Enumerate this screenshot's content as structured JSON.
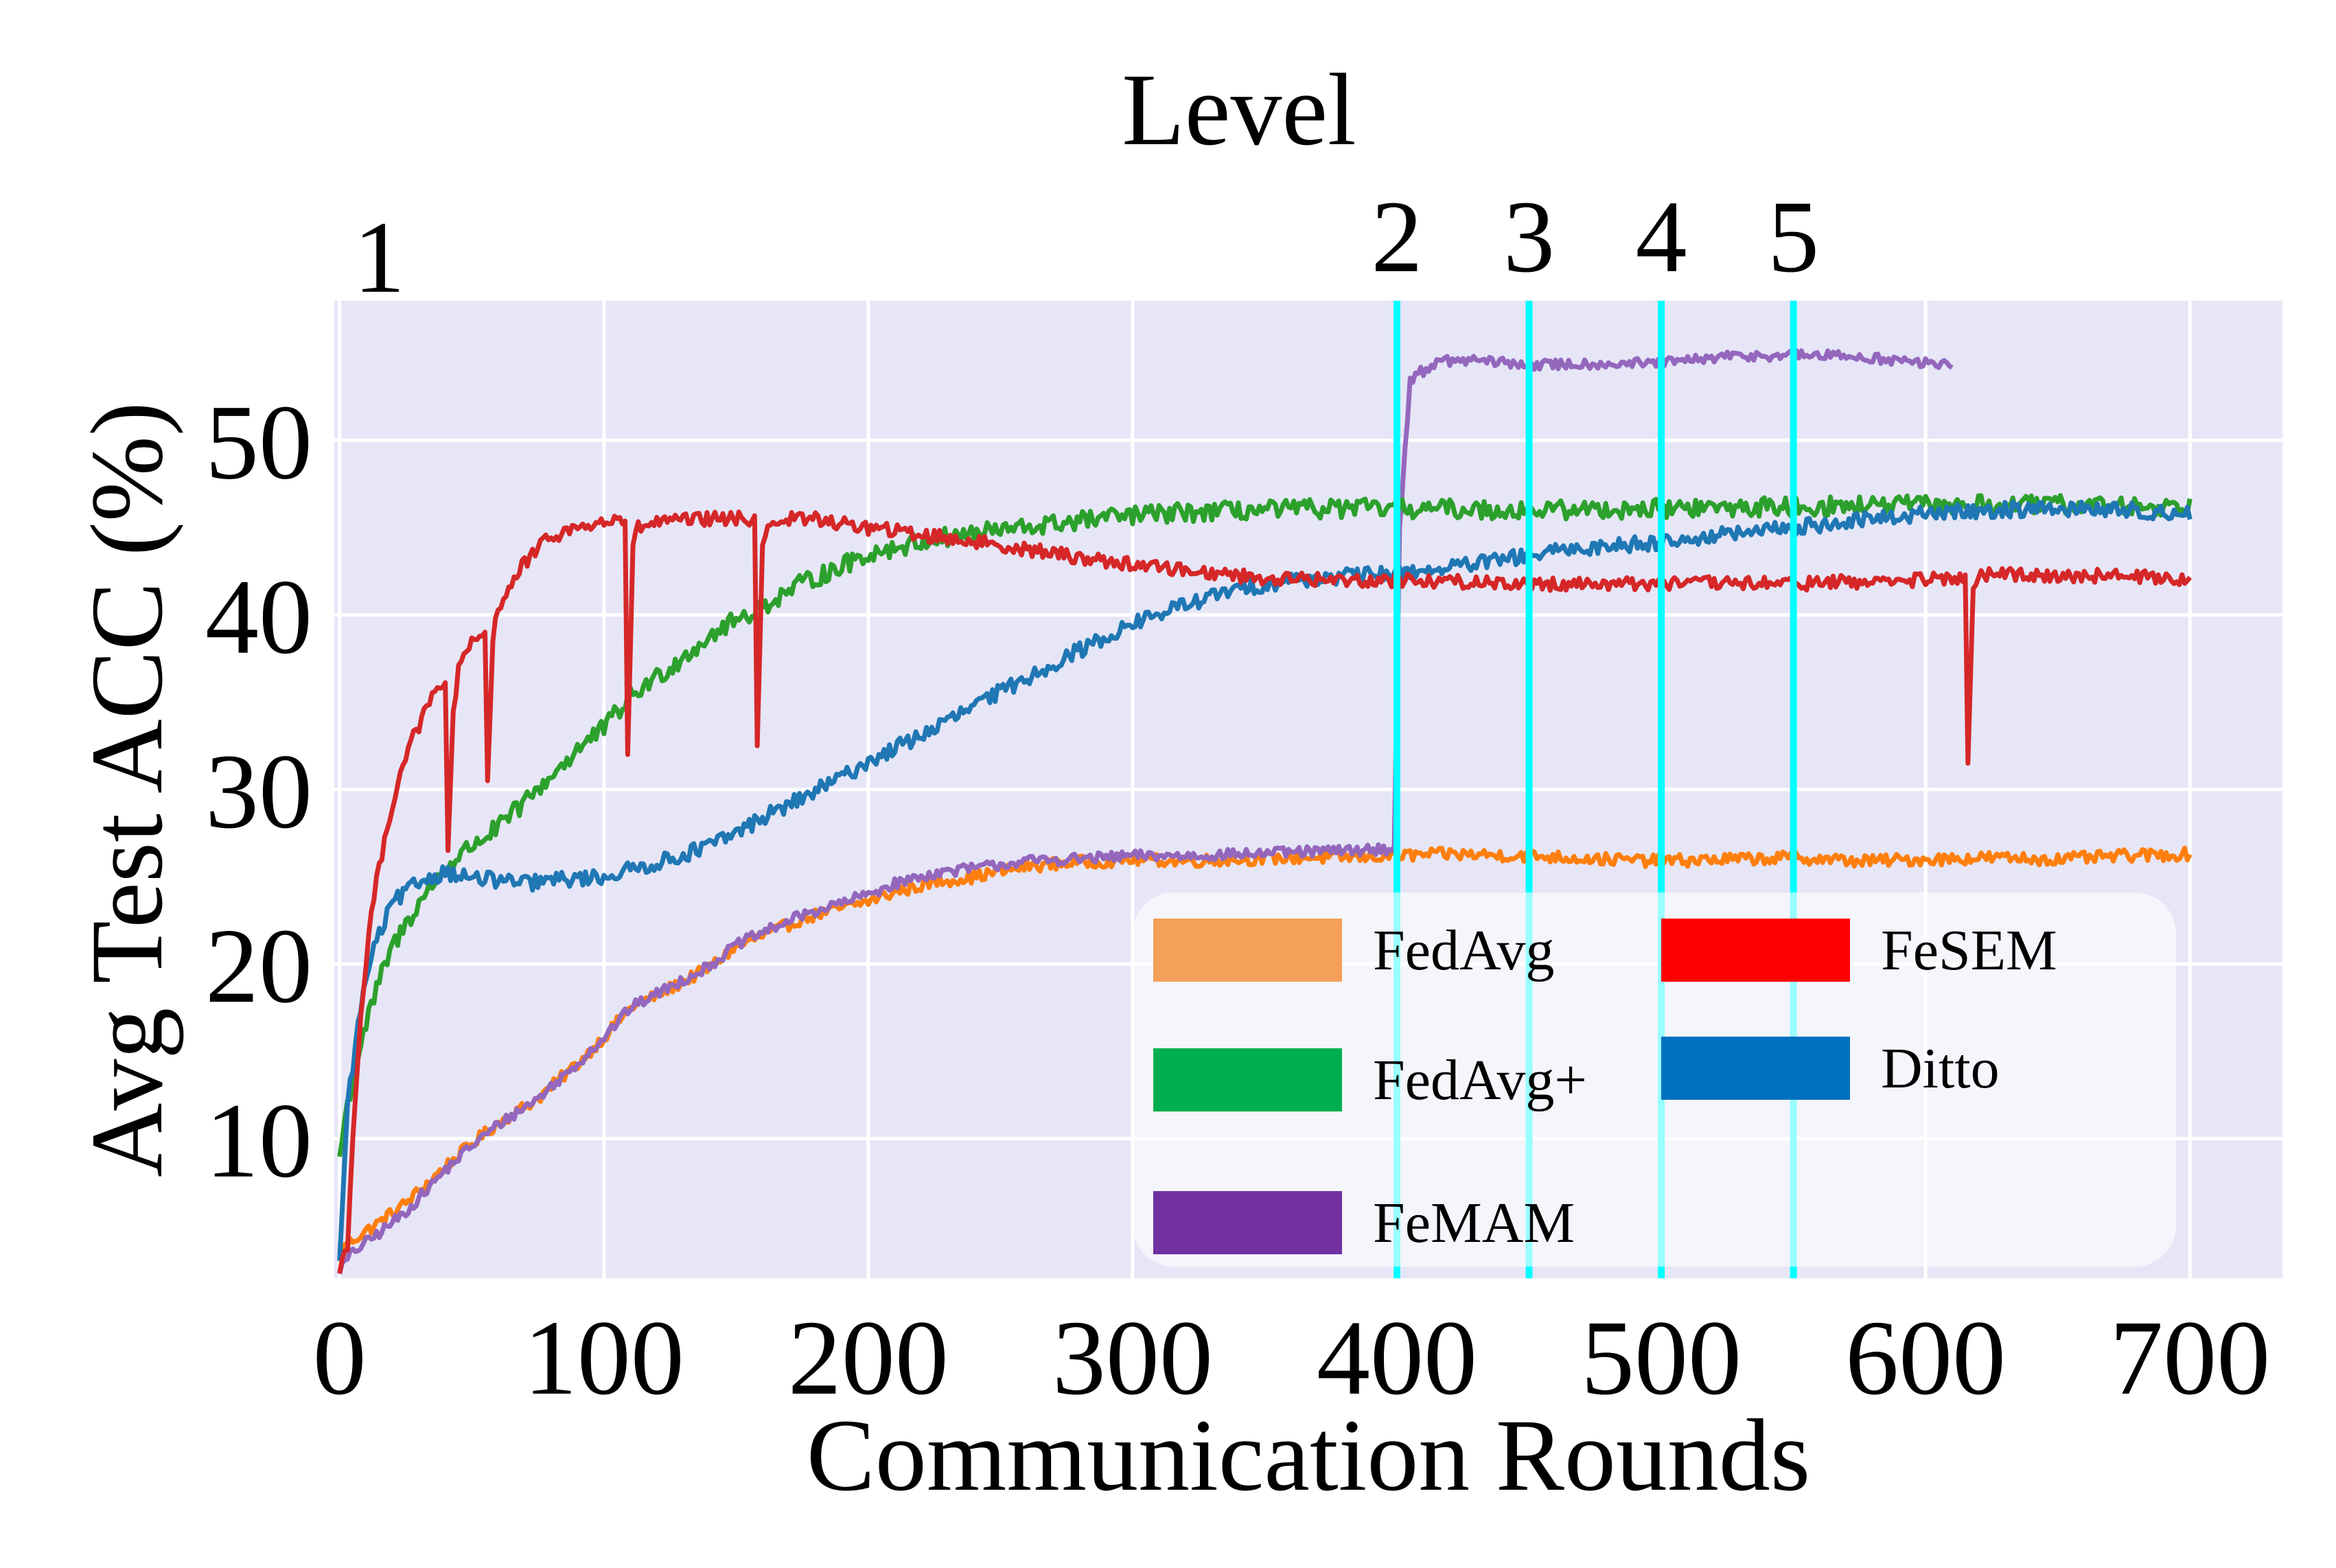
{
  "chart_data": {
    "type": "line",
    "title": "",
    "xlabel": "Communication Rounds",
    "ylabel": "Avg Test ACC (%)",
    "top_axis": {
      "label": "Level",
      "ticks": [
        {
          "x": 15,
          "label": "1"
        },
        {
          "x": 400,
          "label": "2"
        },
        {
          "x": 450,
          "label": "3"
        },
        {
          "x": 500,
          "label": "4"
        },
        {
          "x": 550,
          "label": "5"
        }
      ]
    },
    "xlim": [
      -2,
      735
    ],
    "ylim": [
      2,
      58
    ],
    "x_ticks": [
      0,
      100,
      200,
      300,
      400,
      500,
      600,
      700
    ],
    "x_tick_labels": [
      "0",
      "100",
      "200",
      "300",
      "400",
      "500",
      "600",
      "700"
    ],
    "y_ticks": [
      10,
      20,
      30,
      40,
      50
    ],
    "y_tick_labels": [
      "10",
      "20",
      "30",
      "40",
      "50"
    ],
    "grid": true,
    "background": "#e6e6f7",
    "level_line_color": "#00ffff",
    "level_lines": [
      400,
      450,
      500,
      550
    ],
    "legend": {
      "position": "lower-right",
      "columns": 2,
      "entries": [
        {
          "name": "FedAvg",
          "color": "#f4a05a"
        },
        {
          "name": "FeSEM",
          "color": "#ff0000"
        },
        {
          "name": "FedAvg+",
          "color": "#00ae4f"
        },
        {
          "name": "Ditto",
          "color": "#0070c0"
        },
        {
          "name": "FeMAM",
          "color": "#7030a0"
        }
      ]
    },
    "series": [
      {
        "name": "FedAvg",
        "color": "#ff7f0e",
        "x": [
          0,
          5,
          15,
          25,
          40,
          50,
          60,
          75,
          90,
          100,
          110,
          125,
          140,
          150,
          160,
          175,
          190,
          200,
          210,
          225,
          240,
          250,
          260,
          275,
          290,
          300,
          320,
          340,
          360,
          380,
          399,
          420,
          450,
          480,
          500,
          525,
          550,
          575,
          600,
          625,
          650,
          675,
          700
        ],
        "y": [
          3.5,
          4.2,
          5.2,
          6.3,
          8.4,
          9.7,
          10.9,
          12.3,
          14.3,
          15.8,
          17.5,
          18.6,
          19.8,
          21.0,
          21.6,
          22.6,
          23.2,
          23.6,
          24.1,
          24.7,
          25.0,
          25.3,
          25.6,
          25.8,
          25.9,
          26.0,
          25.9,
          26.0,
          26.1,
          26.1,
          26.2,
          26.3,
          26.2,
          26.0,
          25.9,
          26.0,
          26.1,
          25.9,
          26.0,
          26.1,
          26.0,
          26.2,
          26.3
        ],
        "noise": 0.35
      },
      {
        "name": "FeMAM",
        "color": "#9467bd",
        "x": [
          0,
          5,
          15,
          25,
          40,
          50,
          60,
          75,
          90,
          100,
          110,
          125,
          140,
          150,
          160,
          175,
          190,
          200,
          210,
          225,
          240,
          250,
          260,
          275,
          290,
          300,
          320,
          340,
          360,
          380,
          399,
          401,
          405,
          415,
          430,
          450,
          475,
          500,
          525,
          550,
          575,
          600,
          610
        ],
        "y": [
          2.5,
          3.5,
          4.6,
          5.8,
          8.2,
          9.6,
          10.8,
          12.3,
          14.3,
          15.8,
          17.5,
          18.7,
          19.9,
          21.1,
          21.8,
          22.8,
          23.5,
          24.0,
          24.6,
          25.2,
          25.5,
          25.7,
          25.9,
          26.0,
          26.1,
          26.2,
          26.2,
          26.3,
          26.4,
          26.5,
          26.6,
          45.0,
          53.5,
          54.5,
          54.6,
          54.3,
          54.4,
          54.4,
          54.8,
          54.9,
          54.8,
          54.4,
          54.4
        ],
        "noise": 0.3
      },
      {
        "name": "FedAvg+",
        "color": "#2ca02c",
        "x": [
          0,
          3,
          8,
          15,
          20,
          30,
          40,
          50,
          60,
          75,
          90,
          100,
          110,
          125,
          140,
          150,
          160,
          175,
          190,
          200,
          220,
          240,
          260,
          280,
          300,
          325,
          350,
          375,
          400,
          450,
          500,
          550,
          600,
          650,
          700
        ],
        "y": [
          9.0,
          12.0,
          15.5,
          19.0,
          21.0,
          23.5,
          25.5,
          26.8,
          27.8,
          30.0,
          32.3,
          33.5,
          35.3,
          37.0,
          38.8,
          39.7,
          40.5,
          41.8,
          42.8,
          43.5,
          44.2,
          44.7,
          45.0,
          45.4,
          45.7,
          45.9,
          46.0,
          46.1,
          46.1,
          46.0,
          46.1,
          46.2,
          46.3,
          46.3,
          46.2
        ],
        "noise": 0.55
      },
      {
        "name": "Ditto",
        "color": "#1f77b4",
        "x": [
          0,
          3,
          8,
          12,
          20,
          30,
          40,
          50,
          60,
          70,
          80,
          90,
          100,
          110,
          125,
          140,
          150,
          160,
          175,
          190,
          200,
          225,
          250,
          275,
          300,
          320,
          340,
          360,
          380,
          400,
          425,
          450,
          475,
          500,
          525,
          550,
          575,
          600,
          625,
          650,
          675,
          700
        ],
        "y": [
          3.0,
          12.0,
          17.5,
          20.5,
          23.5,
          24.7,
          25.3,
          24.9,
          24.8,
          24.6,
          24.8,
          24.9,
          25.0,
          25.4,
          26.0,
          26.8,
          27.5,
          28.4,
          29.5,
          30.7,
          31.6,
          33.5,
          35.6,
          37.6,
          39.5,
          40.6,
          41.5,
          42.0,
          42.2,
          42.4,
          42.8,
          43.4,
          43.9,
          44.2,
          44.6,
          45.0,
          45.4,
          45.8,
          46.0,
          46.1,
          46.0,
          45.8
        ],
        "noise": 0.45
      },
      {
        "name": "FeSEM",
        "color": "#d62728",
        "x": [
          0,
          3,
          5,
          8,
          12,
          18,
          25,
          35,
          40,
          41,
          43,
          45,
          50,
          55,
          56,
          58,
          60,
          70,
          80,
          90,
          100,
          108,
          109,
          111,
          113,
          120,
          130,
          140,
          150,
          157,
          158,
          160,
          162,
          170,
          180,
          190,
          200,
          225,
          250,
          275,
          300,
          325,
          350,
          375,
          400,
          425,
          450,
          475,
          500,
          525,
          550,
          575,
          600,
          615,
          616,
          618,
          620,
          625,
          650,
          675,
          700
        ],
        "y": [
          2.5,
          4.0,
          10.0,
          17.0,
          23.0,
          28.0,
          32.0,
          35.3,
          36.2,
          26.5,
          34.5,
          36.8,
          38.3,
          39.0,
          30.5,
          38.5,
          40.5,
          43.0,
          44.5,
          45.0,
          45.3,
          45.4,
          32.0,
          44.0,
          45.0,
          45.3,
          45.4,
          45.5,
          45.5,
          45.5,
          32.5,
          44.0,
          45.2,
          45.5,
          45.5,
          45.2,
          45.0,
          44.5,
          44.0,
          43.4,
          42.9,
          42.5,
          42.1,
          42.0,
          42.0,
          41.9,
          41.8,
          41.8,
          41.8,
          41.8,
          41.8,
          41.9,
          42.0,
          42.1,
          31.5,
          41.5,
          42.2,
          42.3,
          42.3,
          42.2,
          42.1
        ],
        "noise": 0.4
      }
    ]
  }
}
